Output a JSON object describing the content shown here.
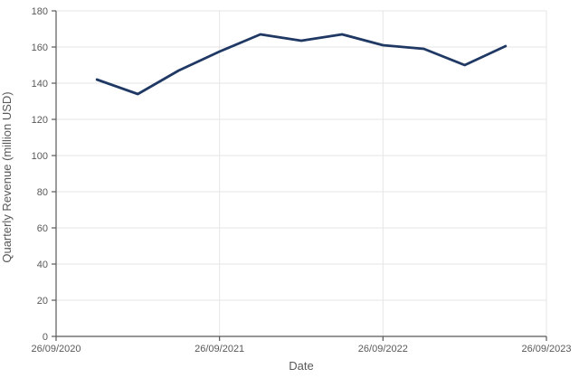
{
  "chart_data": {
    "type": "line",
    "title": "",
    "xlabel": "Date",
    "ylabel": "Quarterly Revenue (million USD)",
    "xlim_years": [
      0,
      3
    ],
    "ylim": [
      0,
      180
    ],
    "y_ticks": [
      0,
      20,
      40,
      60,
      80,
      100,
      120,
      140,
      160,
      180
    ],
    "x_ticks": [
      {
        "label": "26/09/2020",
        "pos_years": 0
      },
      {
        "label": "26/09/2021",
        "pos_years": 1
      },
      {
        "label": "26/09/2022",
        "pos_years": 2
      },
      {
        "label": "26/09/2023",
        "pos_years": 3
      }
    ],
    "grid": true,
    "legend": false,
    "series": [
      {
        "name": "Quarterly Revenue",
        "color": "#1f3864",
        "x_years": [
          0.25,
          0.5,
          0.75,
          1.0,
          1.25,
          1.5,
          1.75,
          2.0,
          2.25,
          2.5,
          2.75
        ],
        "values": [
          142,
          134,
          147,
          157.5,
          167,
          163.5,
          167,
          161,
          159,
          150,
          160.5
        ]
      }
    ]
  },
  "style": {
    "background": "#ffffff",
    "grid_color": "#e6e6e6",
    "axis_color": "#595959",
    "label_color": "#595959",
    "tick_font_size": 11,
    "title_font_size": 13,
    "line_width": 2.8
  }
}
